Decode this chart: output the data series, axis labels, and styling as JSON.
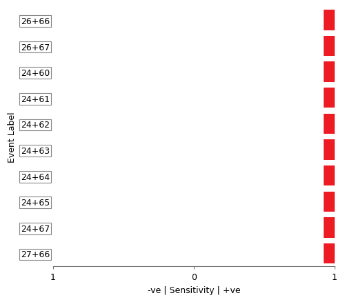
{
  "categories": [
    "27+66",
    "24+67",
    "24+65",
    "24+64",
    "24+63",
    "24+62",
    "24+61",
    "24+60",
    "26+67",
    "26+66"
  ],
  "bar_value": -0.92,
  "bar_color": "#ED1C24",
  "xlim": [
    -1,
    1
  ],
  "xlabel": "-ve | Sensitivity | +ve",
  "ylabel": "Event Label",
  "xticks": [
    -1,
    0,
    1
  ],
  "xticklabels": [
    "1",
    "0",
    "1"
  ],
  "background_color": "#ffffff",
  "bar_height": 0.78,
  "invert_xaxis": true
}
